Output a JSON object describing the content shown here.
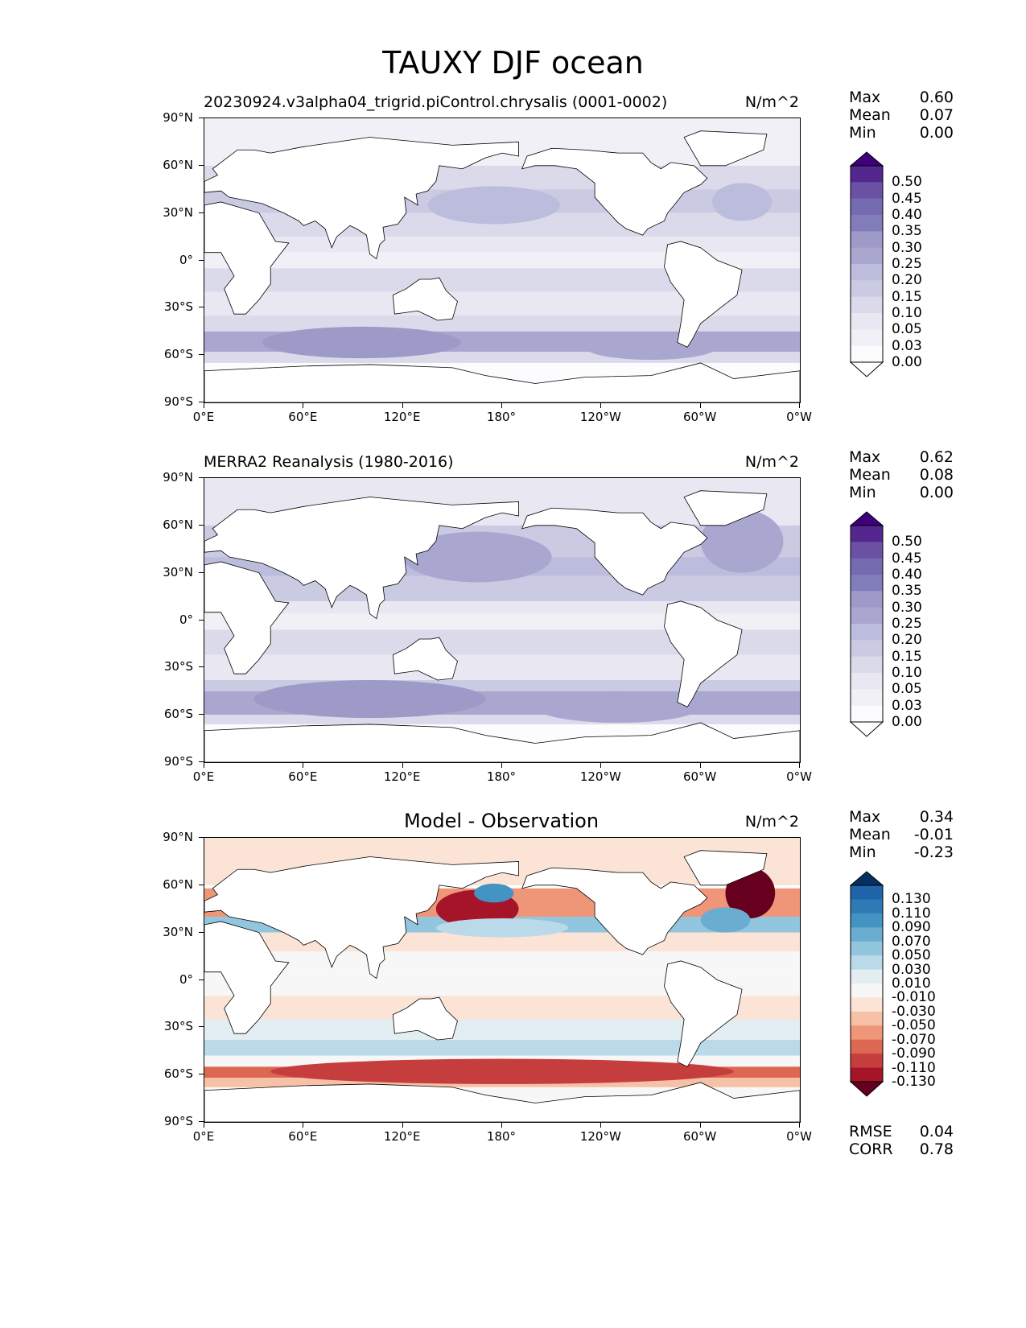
{
  "title": "TAUXY DJF ocean",
  "lat_ticks": [
    "90°N",
    "60°N",
    "30°N",
    "0°",
    "30°S",
    "60°S",
    "90°S"
  ],
  "lon_ticks": [
    "0°E",
    "60°E",
    "120°E",
    "180°",
    "120°W",
    "60°W",
    "0°W"
  ],
  "panels": [
    {
      "title": "20230924.v3alpha04_trigrid.piControl.chrysalis (0001-0002)",
      "units": "N/m^2",
      "stats": {
        "max_label": "Max",
        "max": "0.60",
        "mean_label": "Mean",
        "mean": "0.07",
        "min_label": "Min",
        "min": "0.00"
      },
      "levels": [
        "0.50",
        "0.45",
        "0.40",
        "0.35",
        "0.30",
        "0.25",
        "0.20",
        "0.15",
        "0.10",
        "0.05",
        "0.03",
        "0.00"
      ],
      "colormap": "purples",
      "colors": [
        "#3f007d",
        "#54278f",
        "#6a51a3",
        "#756bb1",
        "#807dba",
        "#9e9ac8",
        "#a9a7cf",
        "#bcbddc",
        "#cacae3",
        "#dadaeb",
        "#e8e7f2",
        "#f2f0f7",
        "#fcfbfd",
        "#ffffff"
      ]
    },
    {
      "title": "MERRA2 Reanalysis (1980-2016)",
      "units": "N/m^2",
      "stats": {
        "max_label": "Max",
        "max": "0.62",
        "mean_label": "Mean",
        "mean": "0.08",
        "min_label": "Min",
        "min": "0.00"
      },
      "levels": [
        "0.50",
        "0.45",
        "0.40",
        "0.35",
        "0.30",
        "0.25",
        "0.20",
        "0.15",
        "0.10",
        "0.05",
        "0.03",
        "0.00"
      ],
      "colormap": "purples",
      "colors": [
        "#3f007d",
        "#54278f",
        "#6a51a3",
        "#756bb1",
        "#807dba",
        "#9e9ac8",
        "#a9a7cf",
        "#bcbddc",
        "#cacae3",
        "#dadaeb",
        "#e8e7f2",
        "#f2f0f7",
        "#fcfbfd",
        "#ffffff"
      ]
    },
    {
      "title": "Model - Observation",
      "units": "N/m^2",
      "stats": {
        "max_label": "Max",
        "max": "0.34",
        "mean_label": "Mean",
        "mean": "-0.01",
        "min_label": "Min",
        "min": "-0.23"
      },
      "levels": [
        "0.130",
        "0.110",
        "0.090",
        "0.070",
        "0.050",
        "0.030",
        "0.010",
        "-0.010",
        "-0.030",
        "-0.050",
        "-0.070",
        "-0.090",
        "-0.110",
        "-0.130"
      ],
      "colormap": "rdbu",
      "colors": [
        "#053061",
        "#1f63a8",
        "#2f79b5",
        "#4393c3",
        "#6bacd1",
        "#92c5de",
        "#bad9e9",
        "#e3eef3",
        "#f7f7f7",
        "#fbe3d6",
        "#f6c1a6",
        "#ee9677",
        "#dc6853",
        "#c53e3d",
        "#a51429",
        "#67001f"
      ],
      "metrics": {
        "rmse_label": "RMSE",
        "rmse": "0.04",
        "corr_label": "CORR",
        "corr": "0.78"
      }
    }
  ]
}
